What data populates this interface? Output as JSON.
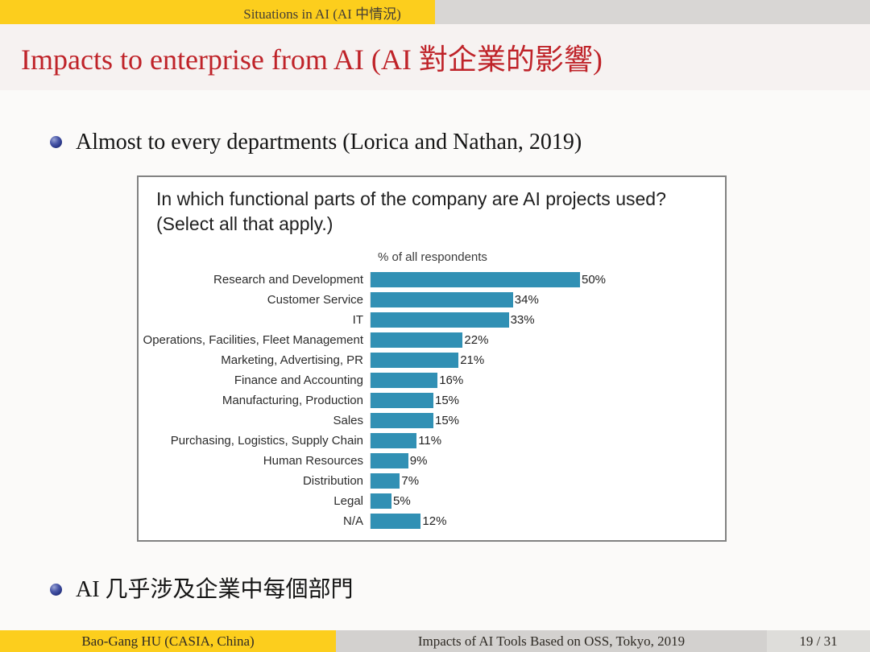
{
  "top_bar": {
    "section_label": "Situations in AI (AI 中情況)"
  },
  "header": {
    "frame_title": "Impacts to enterprise from AI (AI 對企業的影響)"
  },
  "main": {
    "bullets": [
      "Almost to every departments (Lorica and Nathan, 2019)",
      "AI 几乎涉及企業中每個部門"
    ]
  },
  "chart_data": {
    "type": "bar",
    "orientation": "horizontal",
    "title_line1": "In which functional parts of the company are AI projects used?",
    "title_line2": "(Select all that apply.)",
    "xlabel": "% of all respondents",
    "unit": "%",
    "xlim": [
      0,
      55
    ],
    "grid": false,
    "legend": "none",
    "categories": [
      "Research and Development",
      "Customer Service",
      "IT",
      "Operations, Facilities, Fleet Management",
      "Marketing, Advertising, PR",
      "Finance and Accounting",
      "Manufacturing, Production",
      "Sales",
      "Purchasing, Logistics, Supply Chain",
      "Human Resources",
      "Distribution",
      "Legal",
      "N/A"
    ],
    "values": [
      50,
      34,
      33,
      22,
      21,
      16,
      15,
      15,
      11,
      9,
      7,
      5,
      12
    ],
    "value_labels": [
      "50%",
      "34%",
      "33%",
      "22%",
      "21%",
      "16%",
      "15%",
      "15%",
      "11%",
      "9%",
      "7%",
      "5%",
      "12%"
    ]
  },
  "footer": {
    "author": "Bao-Gang HU (CASIA, China)",
    "event_title": "Impacts of AI Tools Based on OSS, Tokyo, 2019",
    "page_indicator": "19 / 31"
  },
  "colors": {
    "accent_yellow": "#fcce1d",
    "top_bar_gray": "#d8d6d4",
    "title_band_bg": "#f6f2f1",
    "body_bg": "#fbfaf9",
    "frame_title_red": "#bf2329",
    "bar_teal": "#3190b4",
    "bullet_navy": "#2d3a8c",
    "footer_gray": "#d3d1cf",
    "footer_page_gray": "#deddda"
  }
}
